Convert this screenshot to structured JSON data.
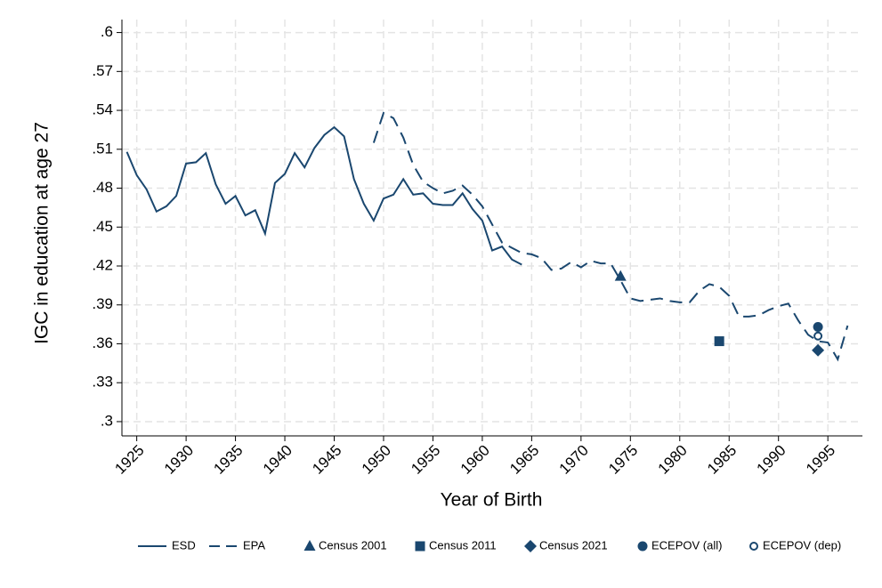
{
  "chart_data": {
    "type": "line",
    "x_label": "Year of Birth",
    "y_label": "IGC in education at age 27",
    "xlim": [
      1923.5,
      1998.5
    ],
    "ylim": [
      0.289,
      0.61
    ],
    "xticks": [
      1925,
      1930,
      1935,
      1940,
      1945,
      1950,
      1955,
      1960,
      1965,
      1970,
      1975,
      1980,
      1985,
      1990,
      1995
    ],
    "yticks": [
      {
        "value": 0.3,
        "label": ".3"
      },
      {
        "value": 0.33,
        "label": ".33"
      },
      {
        "value": 0.36,
        "label": ".36"
      },
      {
        "value": 0.39,
        "label": ".39"
      },
      {
        "value": 0.42,
        "label": ".42"
      },
      {
        "value": 0.45,
        "label": ".45"
      },
      {
        "value": 0.48,
        "label": ".48"
      },
      {
        "value": 0.51,
        "label": ".51"
      },
      {
        "value": 0.54,
        "label": ".54"
      },
      {
        "value": 0.57,
        "label": ".57"
      },
      {
        "value": 0.6,
        "label": ".6"
      }
    ],
    "grid": true,
    "legend": "bottom",
    "series": [
      {
        "name": "ESD",
        "color": "#1a476f",
        "style": "solid",
        "x": [
          1924,
          1925,
          1926,
          1927,
          1928,
          1929,
          1930,
          1931,
          1932,
          1933,
          1934,
          1935,
          1936,
          1937,
          1938,
          1939,
          1940,
          1941,
          1942,
          1943,
          1944,
          1945,
          1946,
          1947,
          1948,
          1949,
          1950,
          1951,
          1952,
          1953,
          1954,
          1955,
          1956,
          1957,
          1958,
          1959,
          1960,
          1961,
          1962,
          1963,
          1964
        ],
        "values": [
          0.508,
          0.49,
          0.479,
          0.462,
          0.466,
          0.474,
          0.499,
          0.5,
          0.507,
          0.483,
          0.468,
          0.474,
          0.459,
          0.463,
          0.445,
          0.484,
          0.491,
          0.507,
          0.496,
          0.511,
          0.521,
          0.527,
          0.52,
          0.487,
          0.468,
          0.455,
          0.472,
          0.475,
          0.487,
          0.475,
          0.476,
          0.468,
          0.467,
          0.467,
          0.476,
          0.464,
          0.455,
          0.432,
          0.435,
          0.425,
          0.421
        ]
      },
      {
        "name": "EPA",
        "color": "#1a476f",
        "style": "dashed",
        "x": [
          1949,
          1950,
          1951,
          1952,
          1953,
          1954,
          1955,
          1956,
          1957,
          1958,
          1959,
          1960,
          1961,
          1962,
          1963,
          1964,
          1965,
          1966,
          1967,
          1968,
          1969,
          1970,
          1971,
          1972,
          1973,
          1974,
          1975,
          1976,
          1977,
          1978,
          1979,
          1980,
          1981,
          1982,
          1983,
          1984,
          1985,
          1986,
          1987,
          1988,
          1989,
          1990,
          1991,
          1992,
          1993,
          1994,
          1995,
          1996,
          1997
        ],
        "values": [
          0.515,
          0.538,
          0.534,
          0.519,
          0.498,
          0.485,
          0.48,
          0.476,
          0.478,
          0.482,
          0.475,
          0.466,
          0.452,
          0.438,
          0.434,
          0.43,
          0.429,
          0.426,
          0.417,
          0.418,
          0.423,
          0.419,
          0.424,
          0.422,
          0.422,
          0.409,
          0.395,
          0.393,
          0.394,
          0.395,
          0.393,
          0.392,
          0.392,
          0.401,
          0.406,
          0.404,
          0.397,
          0.381,
          0.381,
          0.382,
          0.386,
          0.389,
          0.391,
          0.378,
          0.367,
          0.362,
          0.361,
          0.348,
          0.374
        ]
      },
      {
        "name": "Census 2001",
        "color": "#1a476f",
        "marker": "triangle",
        "x": [
          1974
        ],
        "values": [
          0.412
        ]
      },
      {
        "name": "Census 2011",
        "color": "#1a476f",
        "marker": "square",
        "x": [
          1984
        ],
        "values": [
          0.362
        ]
      },
      {
        "name": "Census 2021",
        "color": "#1a476f",
        "marker": "diamond",
        "x": [
          1994
        ],
        "values": [
          0.355
        ]
      },
      {
        "name": "ECEPOV (all)",
        "color": "#1a476f",
        "marker": "circle",
        "x": [
          1994
        ],
        "values": [
          0.373
        ]
      },
      {
        "name": "ECEPOV (dep)",
        "color": "#1a476f",
        "marker": "hollow-circle",
        "x": [
          1994
        ],
        "values": [
          0.366
        ]
      }
    ]
  }
}
